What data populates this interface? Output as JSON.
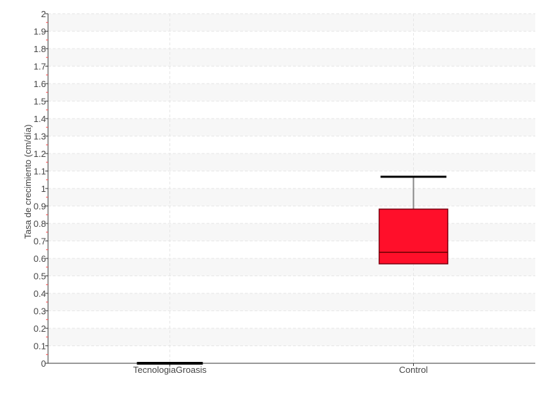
{
  "chart_data": {
    "type": "box",
    "title": "",
    "xlabel": "",
    "ylabel": "Tasa de crecimiento (cm/día)",
    "ylim": [
      0,
      2
    ],
    "ytick_step": 0.1,
    "grid": true,
    "categories": [
      "TecnologiaGroasis",
      "Control"
    ],
    "boxes": [
      {
        "name": "TecnologiaGroasis",
        "min": 0,
        "q1": 0,
        "median": 0,
        "q3": 0,
        "max": 0,
        "color": "#000000"
      },
      {
        "name": "Control",
        "min": 0.569,
        "q1": 0.569,
        "median": 0.635,
        "q3": 0.882,
        "max": 1.067,
        "color": "#ff0f2a"
      }
    ]
  }
}
